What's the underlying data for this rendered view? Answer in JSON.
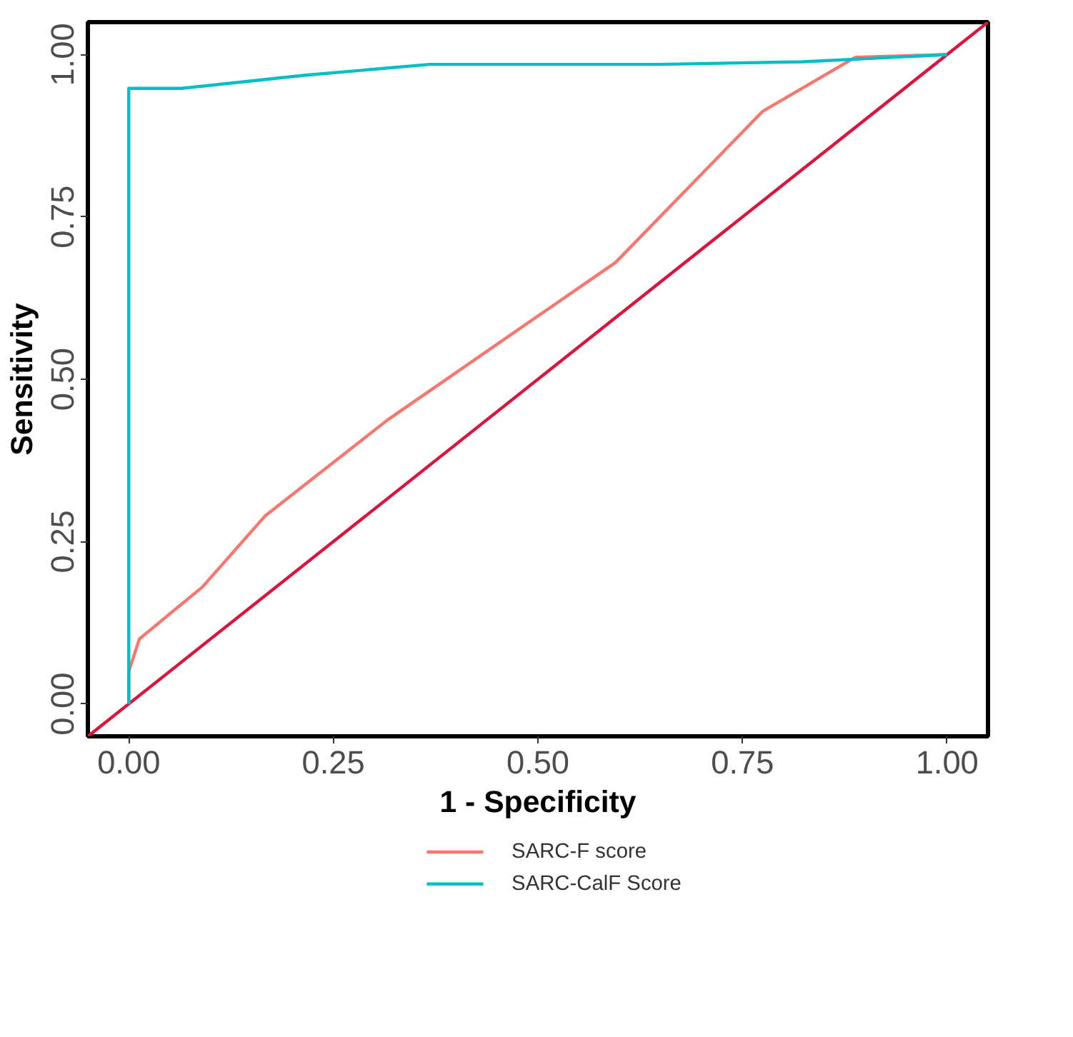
{
  "chart_data": {
    "type": "line",
    "xlabel": "1 - Specificity",
    "ylabel": "Sensitivity",
    "xlim": [
      -0.05,
      1.05
    ],
    "ylim": [
      -0.05,
      1.05
    ],
    "xticks": [
      {
        "value": 0,
        "label": "0.00"
      },
      {
        "value": 0.25,
        "label": "0.25"
      },
      {
        "value": 0.5,
        "label": "0.50"
      },
      {
        "value": 0.75,
        "label": "0.75"
      },
      {
        "value": 1,
        "label": "1.00"
      }
    ],
    "yticks": [
      {
        "value": 0,
        "label": "0.00"
      },
      {
        "value": 0.25,
        "label": "0.25"
      },
      {
        "value": 0.5,
        "label": "0.50"
      },
      {
        "value": 0.75,
        "label": "0.75"
      },
      {
        "value": 1,
        "label": "1.00"
      }
    ],
    "grid": false,
    "legend": "bottom",
    "series": [
      {
        "type": "line",
        "color": "#dc143c",
        "x": [
          -0.05,
          1.05
        ],
        "values": [
          -0.05,
          1.05
        ]
      },
      {
        "name": "SARC-F score",
        "color": "#f8766d",
        "x": [
          0,
          0,
          0.013,
          0.09,
          0.167,
          0.317,
          0.595,
          0.775,
          0.888,
          1
        ],
        "values": [
          0,
          0.05,
          0.1,
          0.18,
          0.29,
          0.438,
          0.68,
          0.913,
          0.996,
          1
        ]
      },
      {
        "name": "SARC-CalF Score",
        "color": "#00bfc4",
        "x": [
          0,
          0,
          0.064,
          0.214,
          0.368,
          0.649,
          0.824,
          1
        ],
        "values": [
          0,
          0.948,
          0.948,
          0.968,
          0.985,
          0.985,
          0.989,
          1
        ]
      }
    ]
  }
}
